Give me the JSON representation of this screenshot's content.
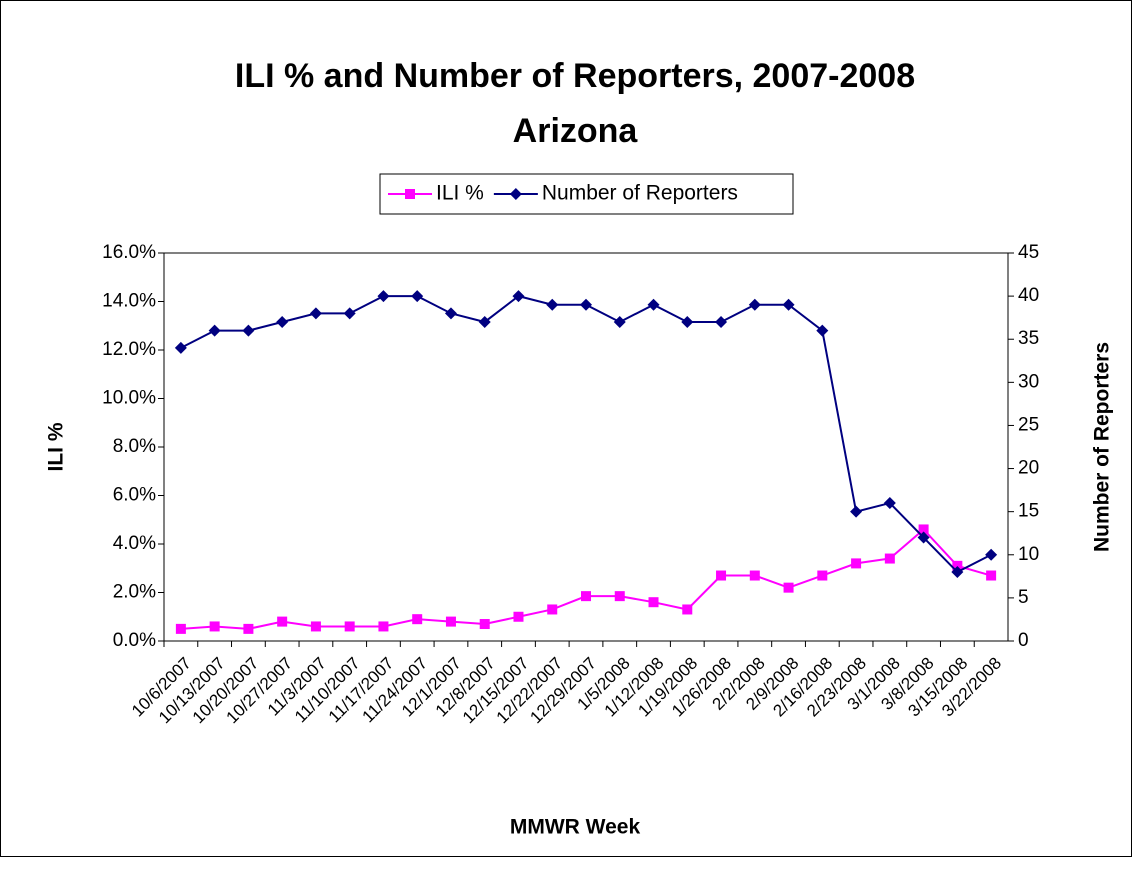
{
  "chart_data": {
    "type": "line",
    "title": "ILI % and Number of Reporters, 2007-2008",
    "subtitle": "Arizona",
    "x_label": "MMWR Week",
    "y_label": "ILI %",
    "y2_label": "Number of Reporters",
    "categories": [
      "10/6/2007",
      "10/13/2007",
      "10/20/2007",
      "10/27/2007",
      "11/3/2007",
      "11/10/2007",
      "11/17/2007",
      "11/24/2007",
      "12/1/2007",
      "12/8/2007",
      "12/15/2007",
      "12/22/2007",
      "12/29/2007",
      "1/5/2008",
      "1/12/2008",
      "1/19/2008",
      "1/26/2008",
      "2/2/2008",
      "2/9/2008",
      "2/16/2008",
      "2/23/2008",
      "3/1/2008",
      "3/8/2008",
      "3/15/2008",
      "3/22/2008"
    ],
    "series": [
      {
        "name": "ILI %",
        "color": "#ff00ff",
        "marker": "square",
        "values": [
          0.5,
          0.6,
          0.5,
          0.8,
          0.6,
          0.6,
          0.6,
          0.9,
          0.8,
          0.7,
          1.0,
          1.3,
          1.85,
          1.85,
          1.6,
          1.3,
          2.7,
          2.7,
          2.2,
          2.7,
          3.2,
          3.4,
          4.6,
          3.1,
          2.7
        ]
      },
      {
        "name": "Number of Reporters",
        "color": "#000080",
        "marker": "diamond",
        "axis": "y2",
        "values": [
          34,
          36,
          36,
          37,
          38,
          38,
          40,
          40,
          38,
          37,
          40,
          39,
          39,
          37,
          39,
          37,
          37,
          39,
          39,
          36,
          15,
          16,
          12,
          8,
          10
        ]
      }
    ],
    "ylim": [
      0,
      16
    ],
    "yticks": [
      {
        "value": 0,
        "label": "0.0%"
      },
      {
        "value": 2,
        "label": "2.0%"
      },
      {
        "value": 4,
        "label": "4.0%"
      },
      {
        "value": 6,
        "label": "6.0%"
      },
      {
        "value": 8,
        "label": "8.0%"
      },
      {
        "value": 10,
        "label": "10.0%"
      },
      {
        "value": 12,
        "label": "12.0%"
      },
      {
        "value": 14,
        "label": "14.0%"
      },
      {
        "value": 16,
        "label": "16.0%"
      }
    ],
    "y2lim": [
      0,
      45
    ],
    "y2ticks": [
      0,
      5,
      10,
      15,
      20,
      25,
      30,
      35,
      40,
      45
    ],
    "grid": false,
    "legend": "top"
  }
}
